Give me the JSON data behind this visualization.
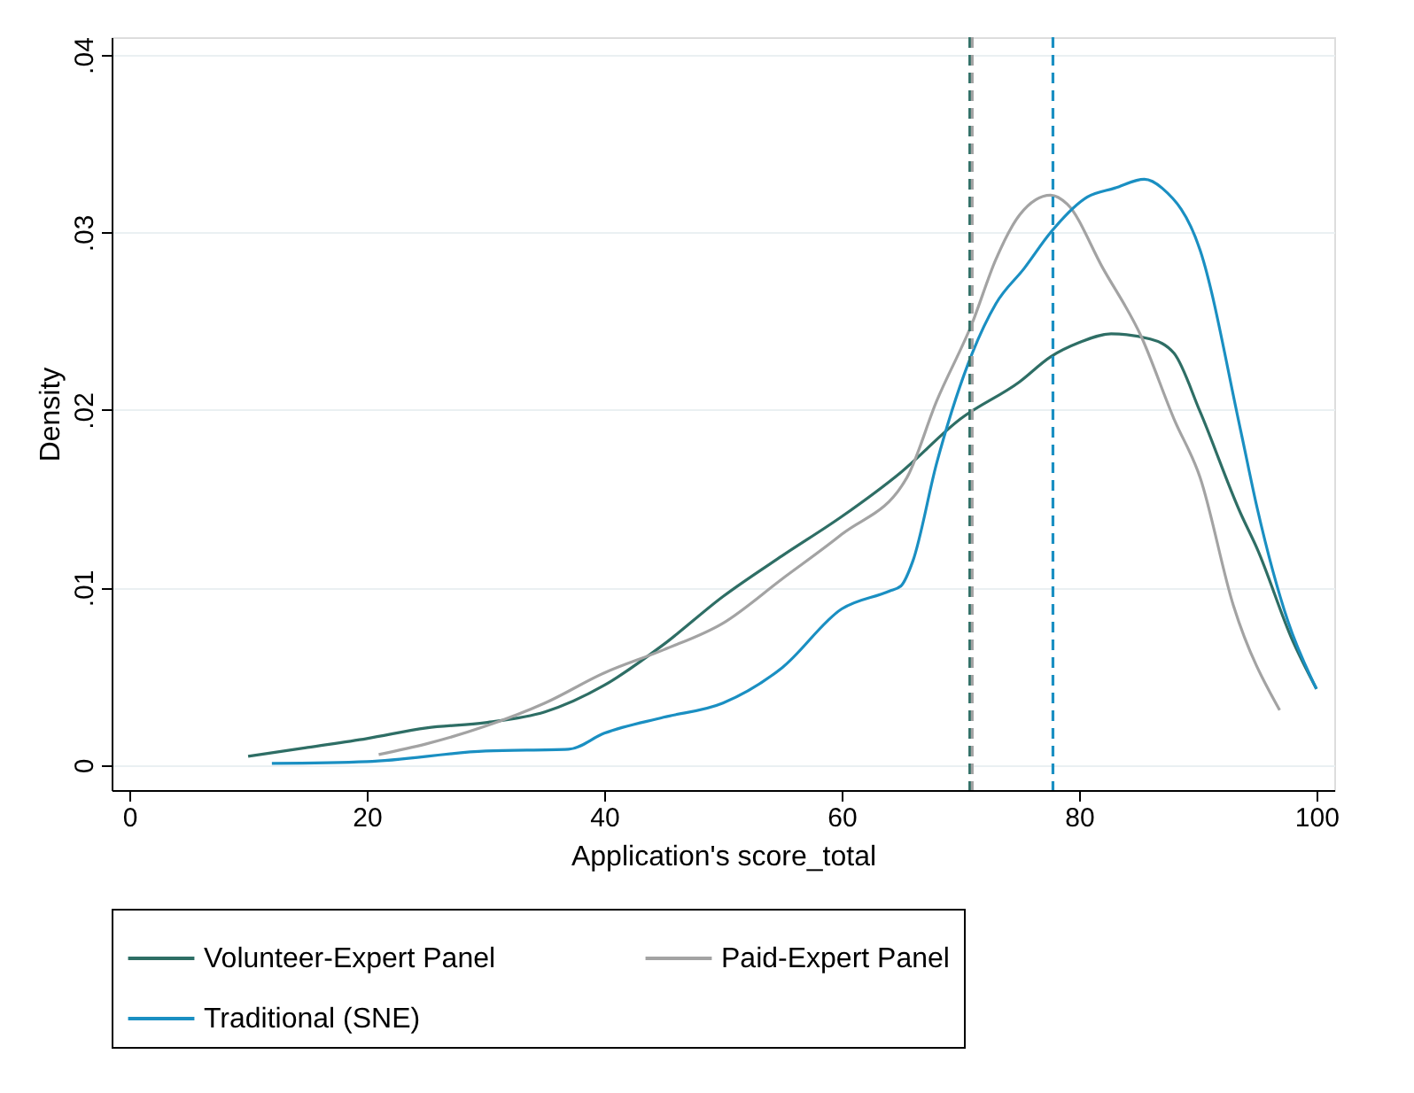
{
  "chart_data": {
    "type": "line",
    "xlabel": "Application's score_total",
    "ylabel": "Density",
    "xlim": [
      -1.5,
      101.5
    ],
    "ylim": [
      -0.0014,
      0.041
    ],
    "xticks": [
      0,
      20,
      40,
      60,
      80,
      100
    ],
    "yticks": [
      0,
      {
        "value": 0.01,
        "label": ".01"
      },
      {
        "value": 0.02,
        "label": ".02"
      },
      {
        "value": 0.03,
        "label": ".03"
      },
      {
        "value": 0.04,
        "label": ".04"
      }
    ],
    "grid": "y",
    "legend": "bottom",
    "line_style": "solid",
    "marker": "none",
    "series": [
      {
        "name": "Volunteer-Expert Panel",
        "color": "#2e6e65",
        "x": [
          10,
          15,
          20,
          25,
          30,
          35,
          40,
          45,
          50,
          55,
          60,
          65,
          70,
          75,
          77.6,
          80,
          82.7,
          86,
          88,
          90.2,
          93.6,
          95,
          98,
          100
        ],
        "values": [
          0.0005,
          0.001,
          0.0015,
          0.0021,
          0.0024,
          0.003,
          0.0045,
          0.0068,
          0.0095,
          0.0118,
          0.014,
          0.0165,
          0.0195,
          0.0216,
          0.023,
          0.0238,
          0.0243,
          0.024,
          0.0232,
          0.0199,
          0.0142,
          0.0122,
          0.007,
          0.0043
        ]
      },
      {
        "name": "Paid-Expert Panel",
        "color": "#a3a3a3",
        "x": [
          21,
          25,
          30,
          35,
          40,
          45,
          50,
          55,
          60,
          65.5,
          68,
          71,
          73,
          75,
          77.6,
          79,
          82,
          85.2,
          88,
          90.2,
          93,
          96.9
        ],
        "values": [
          0.0006,
          0.0012,
          0.0022,
          0.0035,
          0.0052,
          0.0065,
          0.008,
          0.0105,
          0.013,
          0.0162,
          0.0205,
          0.0249,
          0.0285,
          0.031,
          0.0321,
          0.0316,
          0.028,
          0.0242,
          0.0195,
          0.0162,
          0.009,
          0.0031
        ]
      },
      {
        "name": "Traditional (SNE)",
        "color": "#1a8fc2",
        "x": [
          12,
          20,
          30,
          37,
          40,
          45,
          50,
          55,
          60,
          64,
          65,
          66,
          68,
          71,
          73,
          75.4,
          77.6,
          80.7,
          83,
          85.5,
          87,
          90.2,
          93.6,
          95,
          97.6,
          100
        ],
        "values": [
          0.0001,
          0.0002,
          0.0008,
          0.0009,
          0.0018,
          0.0027,
          0.0035,
          0.0055,
          0.0088,
          0.0098,
          0.0101,
          0.0115,
          0.017,
          0.0232,
          0.026,
          0.028,
          0.03,
          0.032,
          0.0325,
          0.033,
          0.0325,
          0.029,
          0.0189,
          0.0145,
          0.0081,
          0.0043
        ]
      }
    ],
    "ref_lines": [
      {
        "axis": "x",
        "value": 70.8,
        "color": "#2e6e65",
        "line_style": "dashed"
      },
      {
        "axis": "x",
        "value": 71,
        "color": "#a3a3a3",
        "line_style": "dashed"
      },
      {
        "axis": "x",
        "value": 77.8,
        "color": "#1a8fc2",
        "line_style": "dashed"
      }
    ]
  }
}
